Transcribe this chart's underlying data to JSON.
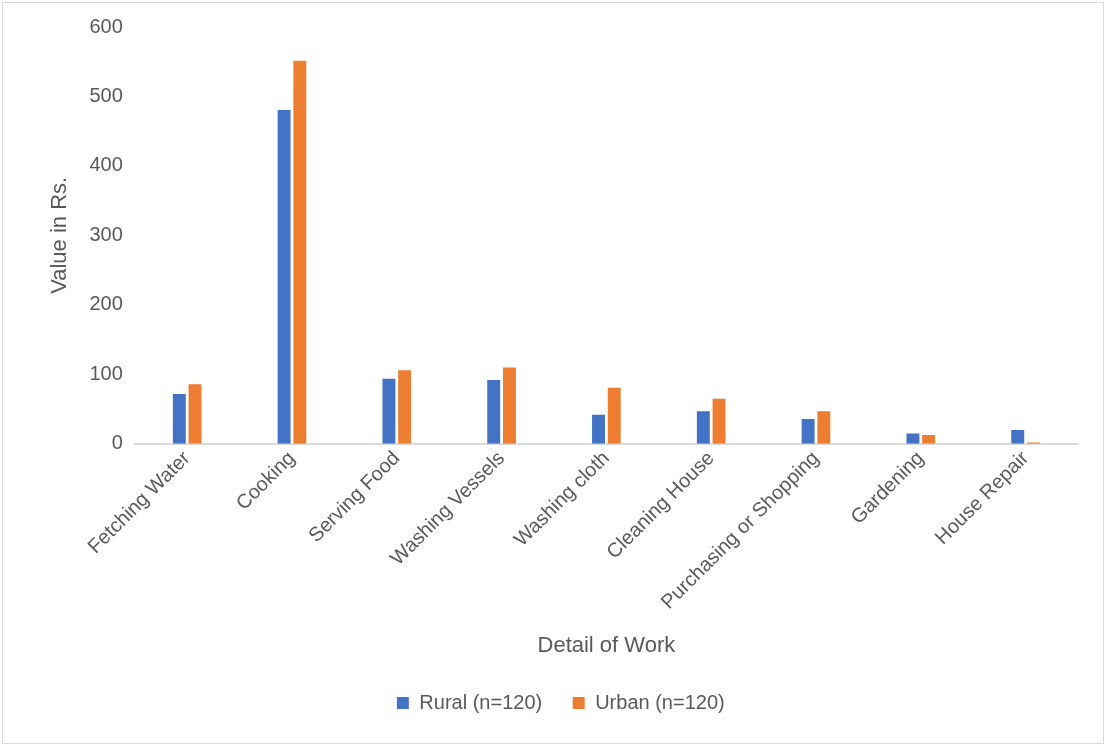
{
  "chart_data": {
    "type": "bar",
    "xlabel": "Detail of Work",
    "ylabel": "Value in Rs.",
    "categories": [
      "Fetching Water",
      "Cooking",
      "Serving Food",
      "Washing Vessels",
      "Washing cloth",
      "Cleaning House",
      "Purchasing or Shopping",
      "Gardening",
      "House Repair"
    ],
    "series": [
      {
        "name": "Rural (n=120)",
        "color": "#4472c4",
        "values": [
          73,
          482,
          95,
          93,
          43,
          48,
          37,
          16,
          21
        ]
      },
      {
        "name": "Urban (n=120)",
        "color": "#ed7d31",
        "values": [
          87,
          553,
          107,
          111,
          82,
          66,
          48,
          14,
          3
        ]
      }
    ],
    "ylim": [
      0,
      600
    ],
    "yticks": [
      0,
      100,
      200,
      300,
      400,
      500,
      600
    ],
    "grid": false,
    "legend": "bottom"
  }
}
